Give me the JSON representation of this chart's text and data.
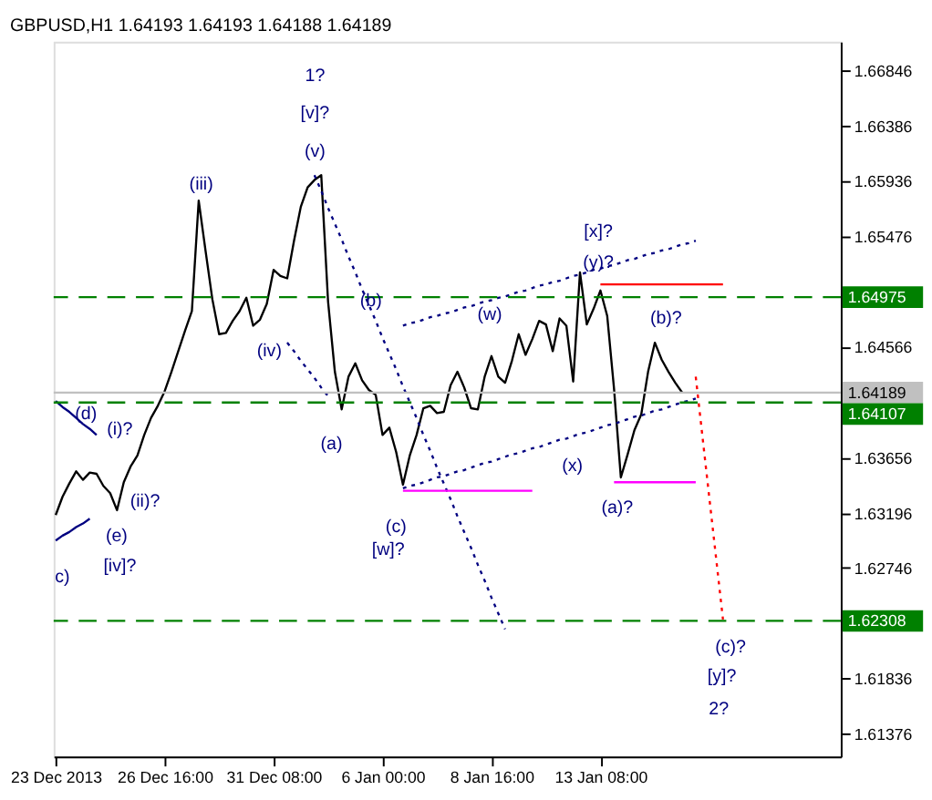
{
  "chart_data": {
    "type": "line",
    "title": "GBPUSD,H1 1.64193 1.64193 1.64188 1.64189",
    "categories": [
      "23 Dec 2013",
      null,
      null,
      null,
      null,
      null,
      null,
      null,
      null,
      null,
      null,
      null,
      null,
      null,
      null,
      null,
      "26 Dec 16:00",
      null,
      null,
      null,
      null,
      null,
      null,
      null,
      null,
      null,
      null,
      null,
      null,
      null,
      null,
      null,
      "31 Dec 08:00",
      null,
      null,
      null,
      null,
      null,
      null,
      null,
      null,
      null,
      null,
      null,
      null,
      null,
      null,
      null,
      "6 Jan 00:00",
      null,
      null,
      null,
      null,
      null,
      null,
      null,
      null,
      null,
      null,
      null,
      null,
      null,
      null,
      null,
      "8 Jan 16:00",
      null,
      null,
      null,
      null,
      null,
      null,
      null,
      null,
      null,
      null,
      null,
      null,
      null,
      null,
      null,
      "13 Jan 08:00",
      null,
      null,
      null,
      null,
      null,
      null,
      null,
      null,
      null,
      null,
      null,
      null,
      null,
      null,
      null,
      null,
      null,
      null,
      null,
      null,
      null,
      null,
      null,
      null,
      null,
      null,
      null,
      null,
      null,
      null,
      null,
      null,
      null,
      null,
      null
    ],
    "ylim": [
      1.6119,
      1.6708
    ],
    "yticks": [
      1.61376,
      1.61836,
      1.62746,
      1.63196,
      1.63656,
      1.64566,
      1.65476,
      1.65936,
      1.66386,
      1.66846
    ],
    "grid": false,
    "series": [
      {
        "color": "#000000",
        "line_style": "solid",
        "values": [
          1.6318,
          1.6333,
          1.6344,
          1.6354,
          1.6347,
          1.6353,
          1.6352,
          1.6342,
          1.6336,
          1.6322,
          1.6345,
          1.6358,
          1.6367,
          1.6384,
          1.6398,
          1.6408,
          1.642,
          1.6436,
          1.6453,
          1.647,
          1.6486,
          1.6577,
          1.6536,
          1.6496,
          1.6467,
          1.6468,
          1.6478,
          1.6486,
          1.6497,
          1.6474,
          1.6479,
          1.6492,
          1.652,
          1.6515,
          1.6513,
          1.6544,
          1.6572,
          1.6588,
          1.6594,
          1.6598,
          1.6494,
          1.6436,
          1.6405,
          1.6432,
          1.6443,
          1.6429,
          1.6421,
          1.6417,
          1.6384,
          1.639,
          1.637,
          1.6343,
          1.6367,
          1.6384,
          1.6406,
          1.6408,
          1.6402,
          1.6403,
          1.6425,
          1.6436,
          1.6423,
          1.6406,
          1.6405,
          1.6432,
          1.6449,
          1.6432,
          1.6427,
          1.6445,
          1.6467,
          1.645,
          1.6463,
          1.6478,
          1.6475,
          1.6453,
          1.648,
          1.6474,
          1.6428,
          1.6518,
          1.6475,
          1.6488,
          1.6503,
          1.6482,
          1.6422,
          1.6349,
          1.6368,
          1.6388,
          1.6401,
          1.6436,
          1.646,
          1.6446,
          1.6436,
          1.6427,
          1.6419,
          null,
          null,
          null,
          null,
          null,
          null,
          null,
          null,
          null,
          null,
          null,
          null,
          null,
          null,
          null,
          null,
          null,
          null,
          null,
          null,
          null,
          null,
          null
        ]
      },
      {
        "color": "#000080",
        "line_style": "dotted",
        "values": [
          null,
          null,
          null,
          null,
          null,
          null,
          null,
          null,
          null,
          null,
          null,
          null,
          null,
          null,
          null,
          null,
          null,
          null,
          null,
          null,
          null,
          null,
          null,
          null,
          null,
          null,
          null,
          null,
          null,
          null,
          null,
          null,
          null,
          null,
          null,
          null,
          null,
          null,
          1.6598,
          1.6585,
          1.6571,
          1.6558,
          1.6545,
          1.6531,
          1.6518,
          1.6504,
          1.6491,
          1.6478,
          1.6464,
          1.6451,
          1.6438,
          1.6424,
          1.6411,
          1.6398,
          1.6384,
          1.6371,
          1.6357,
          1.6344,
          1.6331,
          1.6317,
          1.6304,
          1.6291,
          1.6277,
          1.6264,
          1.625,
          1.6237,
          1.6224,
          null,
          null,
          null,
          null,
          null,
          null,
          null,
          null,
          null,
          null,
          null,
          null,
          null,
          null,
          null,
          null,
          null,
          null,
          null,
          null,
          null,
          null,
          null,
          null,
          null,
          null,
          null,
          null,
          null,
          null,
          null,
          null,
          null,
          null,
          null,
          null,
          null,
          null,
          null,
          null,
          null,
          null,
          null,
          null,
          null,
          null,
          null,
          null,
          null
        ]
      },
      {
        "color": "#000080",
        "line_style": "dotted",
        "values": [
          null,
          null,
          null,
          null,
          null,
          null,
          null,
          null,
          null,
          null,
          null,
          null,
          null,
          null,
          null,
          null,
          null,
          null,
          null,
          null,
          null,
          null,
          null,
          null,
          null,
          null,
          null,
          null,
          null,
          null,
          null,
          null,
          null,
          null,
          1.646,
          1.6453,
          1.6445,
          1.6438,
          1.6431,
          1.6423,
          1.6416,
          null,
          null,
          null,
          null,
          null,
          null,
          null,
          null,
          null,
          null,
          null,
          null,
          null,
          null,
          null,
          null,
          null,
          null,
          null,
          null,
          null,
          null,
          null,
          null,
          null,
          null,
          null,
          null,
          null,
          null,
          null,
          null,
          null,
          null,
          null,
          null,
          null,
          null,
          null,
          null,
          null,
          null,
          null,
          null,
          null,
          null,
          null,
          null,
          null,
          null,
          null,
          null,
          null,
          null,
          null,
          null,
          null,
          null,
          null,
          null,
          null,
          null,
          null,
          null,
          null,
          null,
          null,
          null,
          null,
          null,
          null,
          null,
          null,
          null,
          null
        ]
      },
      {
        "color": "#000080",
        "line_style": "dotted",
        "values": [
          null,
          null,
          null,
          null,
          null,
          null,
          null,
          null,
          null,
          null,
          null,
          null,
          null,
          null,
          null,
          null,
          null,
          null,
          null,
          null,
          null,
          null,
          null,
          null,
          null,
          null,
          null,
          null,
          null,
          null,
          null,
          null,
          null,
          null,
          null,
          null,
          null,
          null,
          null,
          null,
          null,
          null,
          null,
          null,
          null,
          null,
          null,
          null,
          null,
          null,
          null,
          1.6474,
          1.6476,
          1.6477,
          1.6479,
          1.6481,
          1.6482,
          1.6484,
          1.6485,
          1.6487,
          1.6489,
          1.649,
          1.6492,
          1.6494,
          1.6495,
          1.6497,
          1.6498,
          1.65,
          1.6502,
          1.6503,
          1.6505,
          1.6507,
          1.6508,
          1.651,
          1.6511,
          1.6513,
          1.6515,
          1.6516,
          1.6518,
          1.652,
          1.6521,
          1.6523,
          1.6524,
          1.6526,
          1.6528,
          1.6529,
          1.6531,
          1.6533,
          1.6534,
          1.6536,
          1.6537,
          1.6539,
          1.6541,
          1.6542,
          1.6544,
          null,
          null,
          null,
          null,
          null,
          null,
          null,
          null,
          null,
          null,
          null,
          null,
          null,
          null,
          null,
          null,
          null,
          null,
          null,
          null,
          null
        ]
      },
      {
        "color": "#000080",
        "line_style": "dotted",
        "values": [
          null,
          null,
          null,
          null,
          null,
          null,
          null,
          null,
          null,
          null,
          null,
          null,
          null,
          null,
          null,
          null,
          null,
          null,
          null,
          null,
          null,
          null,
          null,
          null,
          null,
          null,
          null,
          null,
          null,
          null,
          null,
          null,
          null,
          null,
          null,
          null,
          null,
          null,
          null,
          null,
          null,
          null,
          null,
          null,
          null,
          null,
          null,
          null,
          null,
          null,
          null,
          1.634,
          1.6342,
          1.6343,
          1.6345,
          1.6347,
          1.6349,
          1.635,
          1.6352,
          1.6354,
          1.6355,
          1.6357,
          1.6359,
          1.6361,
          1.6362,
          1.6364,
          1.6366,
          1.6368,
          1.6369,
          1.6371,
          1.6373,
          1.6374,
          1.6376,
          1.6378,
          1.638,
          1.6381,
          1.6383,
          1.6385,
          1.6386,
          1.6388,
          1.639,
          1.6392,
          1.6393,
          1.6395,
          1.6397,
          1.6399,
          1.64,
          1.6402,
          1.6404,
          1.6405,
          1.6407,
          1.6409,
          1.6411,
          1.6412,
          1.6414,
          null,
          null,
          null,
          null,
          null,
          null,
          null,
          null,
          null,
          null,
          null,
          null,
          null,
          null,
          null,
          null,
          null,
          null,
          null,
          null,
          null
        ]
      },
      {
        "color": "#000080",
        "line_style": "solid",
        "values": [
          1.6412,
          1.6407,
          1.6403,
          1.6398,
          1.6393,
          1.6389,
          1.6384,
          null,
          null,
          null,
          null,
          null,
          null,
          null,
          null,
          null,
          null,
          null,
          null,
          null,
          null,
          null,
          null,
          null,
          null,
          null,
          null,
          null,
          null,
          null,
          null,
          null,
          null,
          null,
          null,
          null,
          null,
          null,
          null,
          null,
          null,
          null,
          null,
          null,
          null,
          null,
          null,
          null,
          null,
          null,
          null,
          null,
          null,
          null,
          null,
          null,
          null,
          null,
          null,
          null,
          null,
          null,
          null,
          null,
          null,
          null,
          null,
          null,
          null,
          null,
          null,
          null,
          null,
          null,
          null,
          null,
          null,
          null,
          null,
          null,
          null,
          null,
          null,
          null,
          null,
          null,
          null,
          null,
          null,
          null,
          null,
          null,
          null,
          null,
          null,
          null,
          null,
          null,
          null,
          null,
          null,
          null,
          null,
          null,
          null,
          null,
          null,
          null,
          null,
          null,
          null,
          null,
          null,
          null,
          null,
          null
        ]
      },
      {
        "color": "#000080",
        "line_style": "solid",
        "values": [
          1.6297,
          1.6301,
          1.6304,
          1.6308,
          1.6311,
          1.6315,
          null,
          null,
          null,
          null,
          null,
          null,
          null,
          null,
          null,
          null,
          null,
          null,
          null,
          null,
          null,
          null,
          null,
          null,
          null,
          null,
          null,
          null,
          null,
          null,
          null,
          null,
          null,
          null,
          null,
          null,
          null,
          null,
          null,
          null,
          null,
          null,
          null,
          null,
          null,
          null,
          null,
          null,
          null,
          null,
          null,
          null,
          null,
          null,
          null,
          null,
          null,
          null,
          null,
          null,
          null,
          null,
          null,
          null,
          null,
          null,
          null,
          null,
          null,
          null,
          null,
          null,
          null,
          null,
          null,
          null,
          null,
          null,
          null,
          null,
          null,
          null,
          null,
          null,
          null,
          null,
          null,
          null,
          null,
          null,
          null,
          null,
          null,
          null,
          null,
          null,
          null,
          null,
          null,
          null,
          null,
          null,
          null,
          null,
          null,
          null,
          null,
          null,
          null,
          null,
          null,
          null,
          null,
          null,
          null,
          null
        ]
      },
      {
        "color": "#ff0000",
        "line_style": "dotted",
        "values": [
          null,
          null,
          null,
          null,
          null,
          null,
          null,
          null,
          null,
          null,
          null,
          null,
          null,
          null,
          null,
          null,
          null,
          null,
          null,
          null,
          null,
          null,
          null,
          null,
          null,
          null,
          null,
          null,
          null,
          null,
          null,
          null,
          null,
          null,
          null,
          null,
          null,
          null,
          null,
          null,
          null,
          null,
          null,
          null,
          null,
          null,
          null,
          null,
          null,
          null,
          null,
          null,
          null,
          null,
          null,
          null,
          null,
          null,
          null,
          null,
          null,
          null,
          null,
          null,
          null,
          null,
          null,
          null,
          null,
          null,
          null,
          null,
          null,
          null,
          null,
          null,
          null,
          null,
          null,
          null,
          null,
          null,
          null,
          null,
          null,
          null,
          null,
          null,
          null,
          null,
          null,
          null,
          null,
          null,
          1.6432,
          1.6382,
          1.6332,
          1.6282,
          1.6232,
          null,
          null,
          null,
          null,
          null,
          null,
          null,
          null,
          null,
          null,
          null,
          null,
          null,
          null,
          null,
          null,
          null
        ]
      },
      {
        "color": "#ff0000",
        "line_style": "solid",
        "values": [
          null,
          null,
          null,
          null,
          null,
          null,
          null,
          null,
          null,
          null,
          null,
          null,
          null,
          null,
          null,
          null,
          null,
          null,
          null,
          null,
          null,
          null,
          null,
          null,
          null,
          null,
          null,
          null,
          null,
          null,
          null,
          null,
          null,
          null,
          null,
          null,
          null,
          null,
          null,
          null,
          null,
          null,
          null,
          null,
          null,
          null,
          null,
          null,
          null,
          null,
          null,
          null,
          null,
          null,
          null,
          null,
          null,
          null,
          null,
          null,
          null,
          null,
          null,
          null,
          null,
          null,
          null,
          null,
          null,
          null,
          null,
          null,
          null,
          null,
          null,
          null,
          null,
          null,
          null,
          null,
          1.6508,
          1.6508,
          1.6508,
          1.6508,
          1.6508,
          1.6508,
          1.6508,
          1.6508,
          1.6508,
          1.6508,
          1.6508,
          1.6508,
          1.6508,
          1.6508,
          1.6508,
          1.6508,
          1.6508,
          1.6508,
          1.6508,
          null,
          null,
          null,
          null,
          null,
          null,
          null,
          null,
          null,
          null,
          null,
          null,
          null,
          null,
          null,
          null,
          null
        ]
      },
      {
        "color": "#ff00ff",
        "line_style": "solid",
        "values": [
          null,
          null,
          null,
          null,
          null,
          null,
          null,
          null,
          null,
          null,
          null,
          null,
          null,
          null,
          null,
          null,
          null,
          null,
          null,
          null,
          null,
          null,
          null,
          null,
          null,
          null,
          null,
          null,
          null,
          null,
          null,
          null,
          null,
          null,
          null,
          null,
          null,
          null,
          null,
          null,
          null,
          null,
          null,
          null,
          null,
          null,
          null,
          null,
          null,
          null,
          null,
          1.6338,
          1.6338,
          1.6338,
          1.6338,
          1.6338,
          1.6338,
          1.6338,
          1.6338,
          1.6338,
          1.6338,
          1.6338,
          1.6338,
          1.6338,
          1.6338,
          1.6338,
          1.6338,
          1.6338,
          1.6338,
          1.6338,
          1.6338,
          null,
          null,
          null,
          null,
          null,
          null,
          null,
          null,
          null,
          null,
          null,
          null,
          null,
          null,
          null,
          null,
          null,
          null,
          null,
          null,
          null,
          null,
          null,
          null,
          null,
          null,
          null,
          null,
          null,
          null,
          null,
          null,
          null,
          null,
          null,
          null,
          null,
          null,
          null,
          null,
          null,
          null,
          null,
          null,
          null
        ]
      },
      {
        "color": "#ff00ff",
        "line_style": "solid",
        "values": [
          null,
          null,
          null,
          null,
          null,
          null,
          null,
          null,
          null,
          null,
          null,
          null,
          null,
          null,
          null,
          null,
          null,
          null,
          null,
          null,
          null,
          null,
          null,
          null,
          null,
          null,
          null,
          null,
          null,
          null,
          null,
          null,
          null,
          null,
          null,
          null,
          null,
          null,
          null,
          null,
          null,
          null,
          null,
          null,
          null,
          null,
          null,
          null,
          null,
          null,
          null,
          null,
          null,
          null,
          null,
          null,
          null,
          null,
          null,
          null,
          null,
          null,
          null,
          null,
          null,
          null,
          null,
          null,
          null,
          null,
          null,
          null,
          null,
          null,
          null,
          null,
          null,
          null,
          null,
          null,
          null,
          null,
          1.6345,
          1.6345,
          1.6345,
          1.6345,
          1.6345,
          1.6345,
          1.6345,
          1.6345,
          1.6345,
          1.6345,
          1.6345,
          1.6345,
          1.6345,
          null,
          null,
          null,
          null,
          null,
          null,
          null,
          null,
          null,
          null,
          null,
          null,
          null,
          null,
          null,
          null,
          null,
          null,
          null,
          null,
          null
        ]
      }
    ],
    "ref_lines": [
      {
        "axis": "y",
        "value": 1.64975,
        "label": "1.64975",
        "color": "#008000",
        "line_style": "dashed"
      },
      {
        "axis": "y",
        "value": 1.64107,
        "label": "1.64107",
        "color": "#008000",
        "line_style": "dashed"
      },
      {
        "axis": "y",
        "value": 1.62308,
        "label": "1.62308",
        "color": "#008000",
        "line_style": "dashed"
      },
      {
        "axis": "y",
        "value": 1.64189,
        "label": "1.64189",
        "color": "#c0c0c0",
        "line_style": "solid"
      }
    ],
    "annotations": [
      "1?",
      "[v]?",
      "(v)",
      "(iii)",
      "(iv)",
      "(b)",
      "(a)",
      "(c)",
      "[w]?",
      "(w)",
      "[x]?",
      "(y)?",
      "(x)",
      "(a)?",
      "(b)?",
      "(c)?",
      "[y]?",
      "2?",
      "(d)",
      "(i)?",
      "(ii)?",
      "(e)",
      "[iv]?",
      "c)"
    ]
  }
}
